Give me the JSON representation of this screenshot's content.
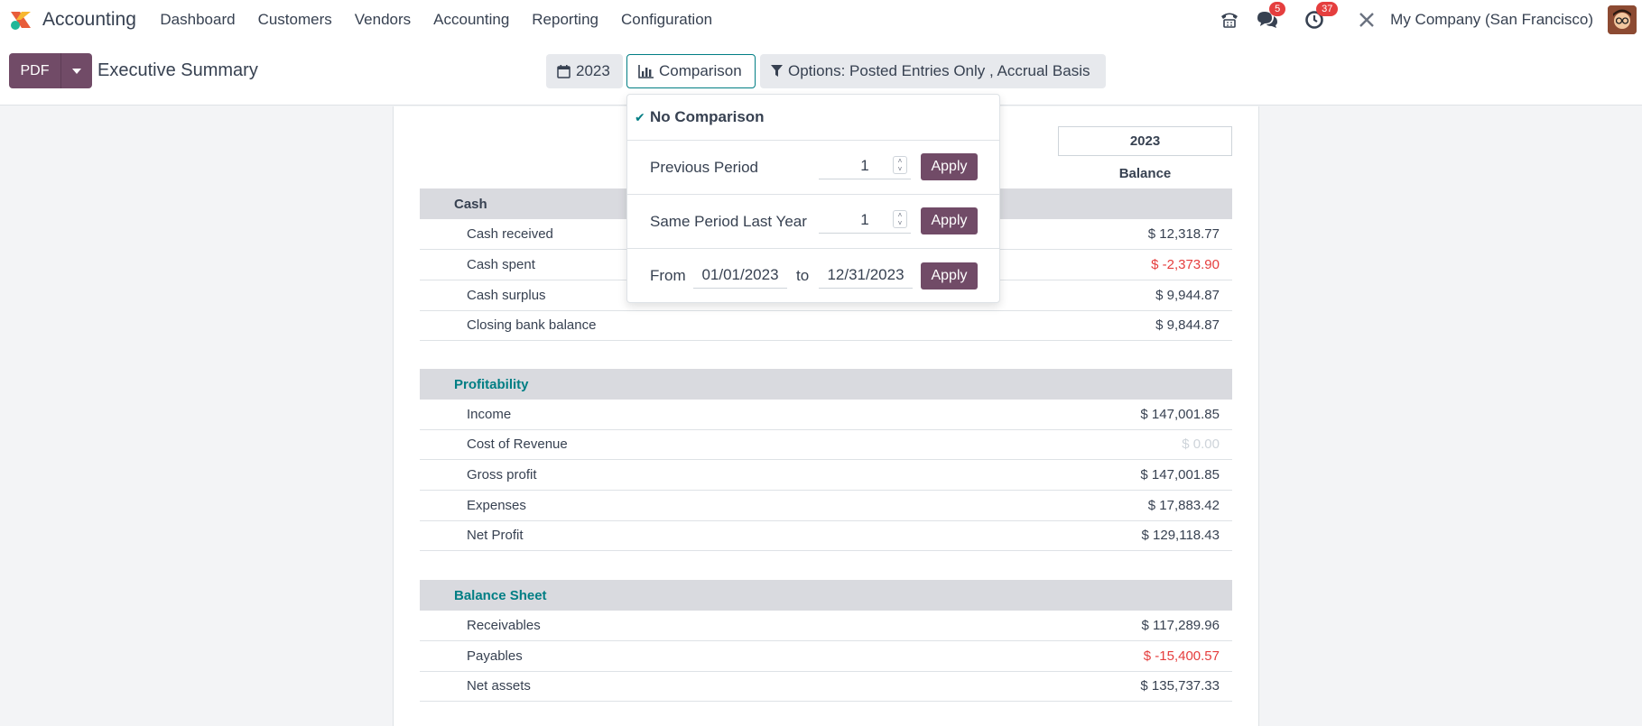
{
  "navbar": {
    "app_name": "Accounting",
    "menu": [
      "Dashboard",
      "Customers",
      "Vendors",
      "Accounting",
      "Reporting",
      "Configuration"
    ],
    "messages_count": "5",
    "activities_count": "37",
    "company": "My Company (San Francisco)"
  },
  "control": {
    "pdf_label": "PDF",
    "title": "Executive Summary",
    "year_filter": "2023",
    "comparison_filter": "Comparison",
    "options_filter": "Options: Posted Entries Only , Accrual Basis"
  },
  "comparison_menu": {
    "no_comparison": "No Comparison",
    "previous_period": {
      "label": "Previous Period",
      "value": "1",
      "apply": "Apply"
    },
    "same_period_last_year": {
      "label": "Same Period Last Year",
      "value": "1",
      "apply": "Apply"
    },
    "custom_range": {
      "from_label": "From",
      "from": "01/01/2023",
      "to_label": "to",
      "to": "12/31/2023",
      "apply": "Apply"
    }
  },
  "report": {
    "column_year": "2023",
    "column_balance": "Balance",
    "sections": [
      {
        "title": "Cash",
        "rows": [
          {
            "label": "Cash received",
            "value": "$ 12,318.77",
            "style": "normal"
          },
          {
            "label": "Cash spent",
            "value": "$ -2,373.90",
            "style": "neg"
          },
          {
            "label": "Cash surplus",
            "value": "$ 9,944.87",
            "style": "normal"
          },
          {
            "label": "Closing bank balance",
            "value": "$ 9,844.87",
            "style": "normal"
          }
        ]
      },
      {
        "title": "Profitability",
        "rows": [
          {
            "label": "Income",
            "value": "$ 147,001.85",
            "style": "normal"
          },
          {
            "label": "Cost of Revenue",
            "value": "$ 0.00",
            "style": "zero"
          },
          {
            "label": "Gross profit",
            "value": "$ 147,001.85",
            "style": "normal"
          },
          {
            "label": "Expenses",
            "value": "$ 17,883.42",
            "style": "normal"
          },
          {
            "label": "Net Profit",
            "value": "$ 129,118.43",
            "style": "normal"
          }
        ]
      },
      {
        "title": "Balance Sheet",
        "rows": [
          {
            "label": "Receivables",
            "value": "$ 117,289.96",
            "style": "normal"
          },
          {
            "label": "Payables",
            "value": "$ -15,400.57",
            "style": "neg"
          },
          {
            "label": "Net assets",
            "value": "$ 135,737.33",
            "style": "normal"
          }
        ]
      }
    ]
  },
  "colors": {
    "brand": "#714b67",
    "teal": "#017e84",
    "negative": "#e53e3e"
  }
}
